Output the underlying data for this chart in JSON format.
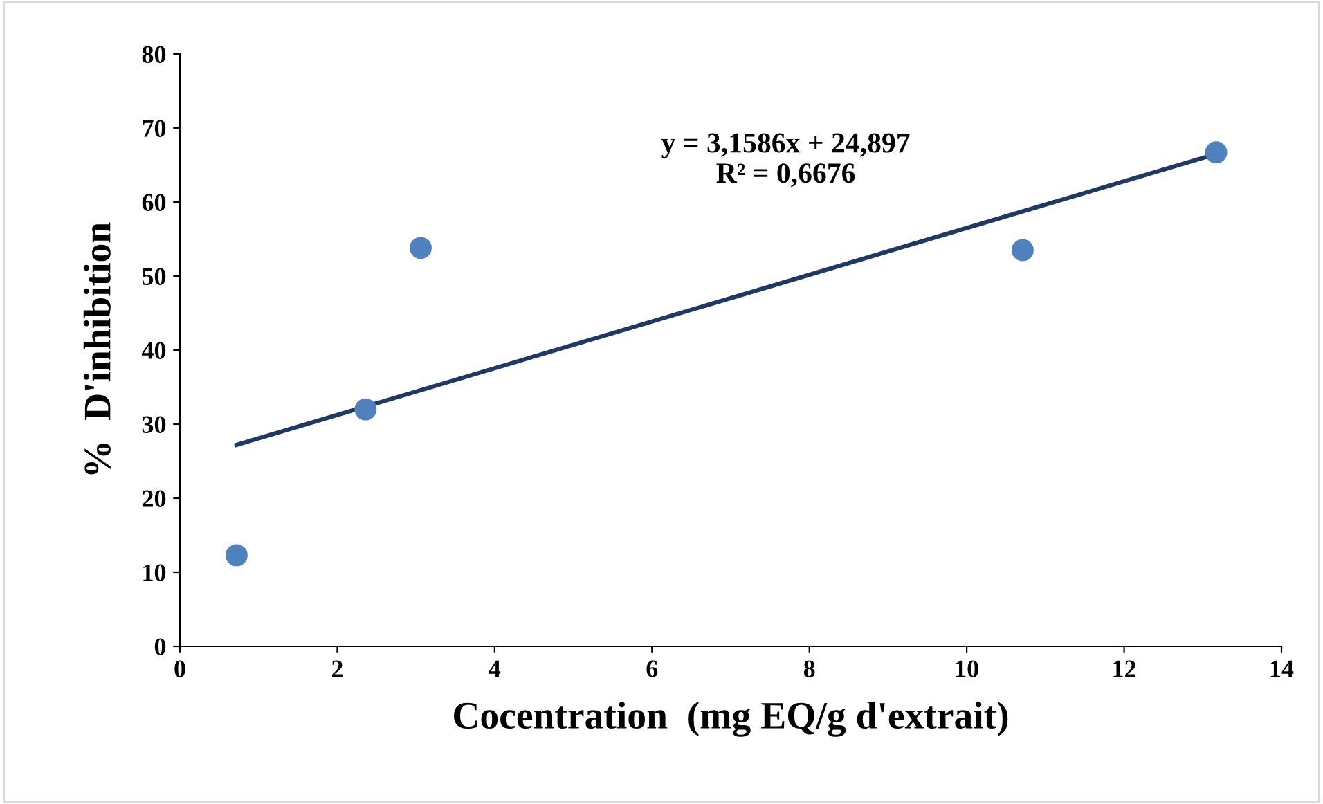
{
  "chart_data": {
    "type": "scatter",
    "xlabel": "Cocentration  (mg EQ/g d'extrait)",
    "ylabel": "%  D'inhibition",
    "x": [
      0.72,
      2.36,
      3.06,
      10.71,
      13.17
    ],
    "series": [
      {
        "color": "#4f81bd",
        "marker": "circle",
        "values": [
          12.3,
          32.0,
          53.8,
          53.5,
          66.7
        ]
      },
      {
        "type": "line",
        "color": "#1f3864",
        "marker": "none",
        "x": [
          0.72,
          13.17
        ],
        "values": [
          27.2,
          66.5
        ]
      }
    ],
    "annotations": [
      "y = 3,1586x + 24,897\nR² = 0,6676"
    ],
    "xlim": [
      0,
      14
    ],
    "xticks": [
      0,
      2,
      4,
      6,
      8,
      10,
      12,
      14
    ],
    "ylim": [
      0,
      80
    ],
    "yticks": [
      0,
      10,
      20,
      30,
      40,
      50,
      60,
      70,
      80
    ],
    "grid": false,
    "legend": false
  }
}
